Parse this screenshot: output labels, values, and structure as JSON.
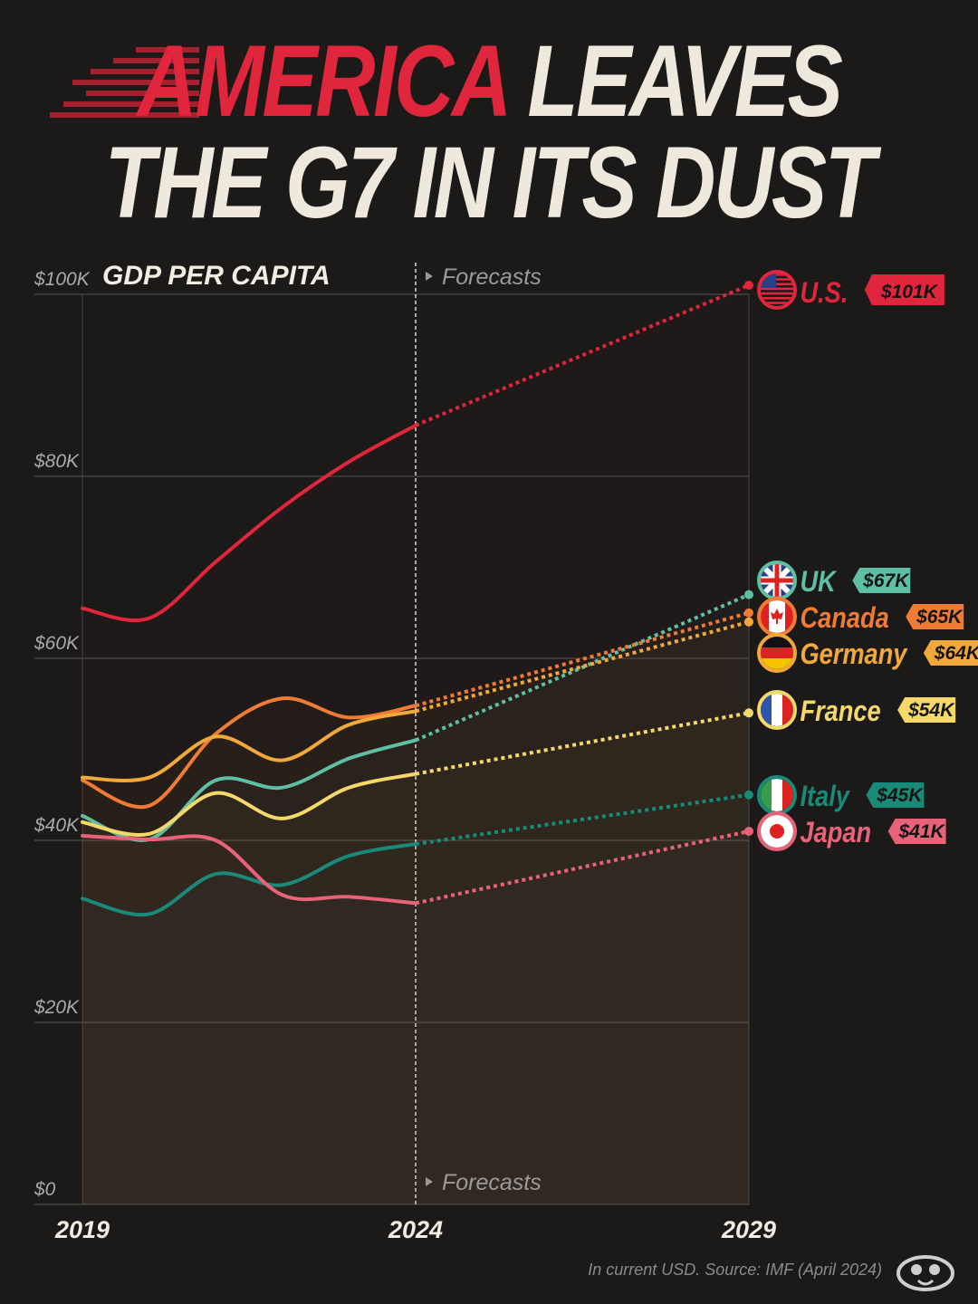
{
  "title": {
    "line1_highlight": "AMERICA",
    "line1_rest": " LEAVES",
    "line2": "THE G7 IN ITS DUST"
  },
  "footer": {
    "source": "In current USD. Source: IMF (April 2024)"
  },
  "colors": {
    "background": "#1b1a19",
    "US": "#e0263d",
    "UK": "#5fbfa5",
    "Canada": "#f07b34",
    "Germany": "#f2a93b",
    "France": "#f5d86a",
    "Italy": "#1a8a78",
    "Japan": "#e8637a"
  },
  "chart_data": {
    "type": "line",
    "title": "GDP PER CAPITA",
    "annotation": "Forecasts",
    "xlabel": "",
    "ylabel": "",
    "x": [
      2019,
      2020,
      2021,
      2022,
      2023,
      2024,
      2029
    ],
    "x_ticks": [
      "2019",
      "2024",
      "2029"
    ],
    "forecast_start": 2024,
    "ylim": [
      0,
      100
    ],
    "y_ticks": [
      "$0",
      "$20K",
      "$40K",
      "$60K",
      "$80K",
      "$100K"
    ],
    "y_tick_values": [
      0,
      20,
      40,
      60,
      80,
      100
    ],
    "units": "thousand USD",
    "series": [
      {
        "name": "U.S.",
        "key": "US",
        "values": [
          65.5,
          64.4,
          70.6,
          76.6,
          81.6,
          85.6,
          101
        ],
        "label": "$101K"
      },
      {
        "name": "UK",
        "key": "UK",
        "values": [
          42.7,
          40.1,
          46.6,
          45.8,
          49.0,
          51.0,
          67
        ],
        "label": "$67K"
      },
      {
        "name": "Canada",
        "key": "Canada",
        "values": [
          46.6,
          43.8,
          51.7,
          55.6,
          53.5,
          54.8,
          65
        ],
        "label": "$65K"
      },
      {
        "name": "Germany",
        "key": "Germany",
        "values": [
          46.9,
          46.9,
          51.4,
          48.8,
          52.7,
          54.2,
          64
        ],
        "label": "$64K"
      },
      {
        "name": "France",
        "key": "France",
        "values": [
          42.0,
          40.7,
          45.2,
          42.4,
          45.8,
          47.3,
          54
        ],
        "label": "$54K"
      },
      {
        "name": "Italy",
        "key": "Italy",
        "values": [
          33.6,
          31.9,
          36.3,
          35.1,
          38.3,
          39.6,
          45
        ],
        "label": "$45K"
      },
      {
        "name": "Japan",
        "key": "Japan",
        "values": [
          40.5,
          40.1,
          40.0,
          34.0,
          33.8,
          33.1,
          41
        ],
        "label": "$41K"
      }
    ]
  }
}
